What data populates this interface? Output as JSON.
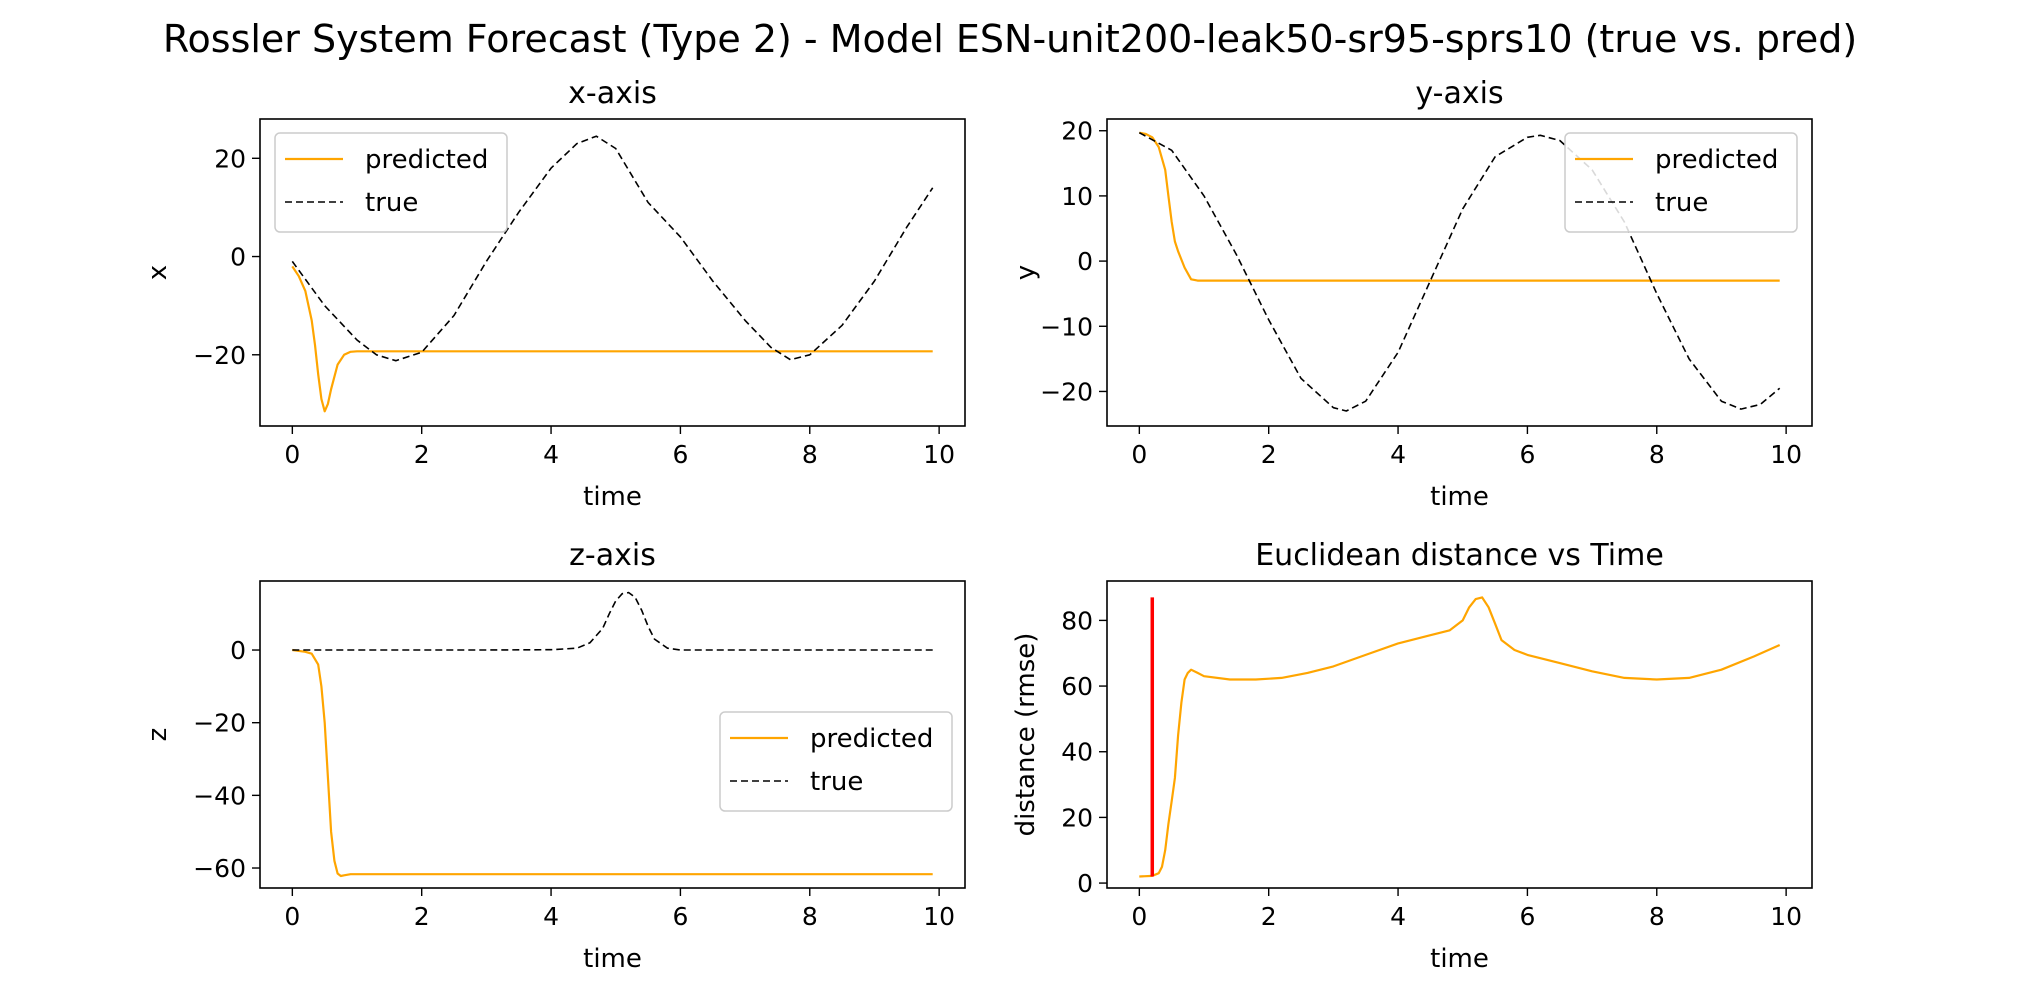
{
  "figure": {
    "title": "Rossler System Forecast (Type 2) - Model ESN-unit200-leak50-sr95-sprs10 (true vs. pred)"
  },
  "colors": {
    "predicted": "#ffa500",
    "true": "#000000",
    "threshold": "#ff0000"
  },
  "chart_data": [
    {
      "type": "line",
      "title": "x-axis",
      "xlabel": "time",
      "ylabel": "x",
      "xlim": [
        -0.5,
        10.4
      ],
      "ylim": [
        -34.5,
        28
      ],
      "xticks": [
        0,
        2,
        4,
        6,
        8,
        10
      ],
      "yticks": [
        -20,
        0,
        20
      ],
      "legend": "upper-left",
      "series": [
        {
          "name": "predicted",
          "style": "solid",
          "x": [
            0,
            0.1,
            0.2,
            0.3,
            0.35,
            0.4,
            0.45,
            0.5,
            0.55,
            0.6,
            0.7,
            0.8,
            0.9,
            1.0,
            2.0,
            4.0,
            6.0,
            8.0,
            9.9
          ],
          "y": [
            -2,
            -4,
            -7,
            -13,
            -18,
            -24,
            -29,
            -31.5,
            -30,
            -27,
            -22,
            -20,
            -19.4,
            -19.3,
            -19.3,
            -19.3,
            -19.3,
            -19.3,
            -19.3
          ]
        },
        {
          "name": "true",
          "style": "dashed",
          "x": [
            0,
            0.5,
            1.0,
            1.3,
            1.6,
            2.0,
            2.5,
            3.0,
            3.5,
            4.0,
            4.4,
            4.7,
            5.0,
            5.5,
            6.0,
            6.5,
            7.0,
            7.4,
            7.7,
            8.0,
            8.5,
            9.0,
            9.5,
            9.9
          ],
          "y": [
            -1,
            -10,
            -17,
            -20,
            -21.2,
            -19.5,
            -12,
            -1,
            9,
            18,
            23,
            24.5,
            22,
            11,
            4,
            -5,
            -13,
            -18.5,
            -21,
            -20,
            -14,
            -5,
            6,
            14
          ]
        }
      ]
    },
    {
      "type": "line",
      "title": "y-axis",
      "xlabel": "time",
      "ylabel": "y",
      "xlim": [
        -0.5,
        10.4
      ],
      "ylim": [
        -25.3,
        21.8
      ],
      "xticks": [
        0,
        2,
        4,
        6,
        8,
        10
      ],
      "yticks": [
        -20,
        -10,
        0,
        10,
        20
      ],
      "legend": "upper-right",
      "series": [
        {
          "name": "predicted",
          "style": "solid",
          "x": [
            0,
            0.1,
            0.2,
            0.3,
            0.4,
            0.45,
            0.5,
            0.55,
            0.6,
            0.7,
            0.8,
            0.9,
            1.0,
            2.0,
            4.0,
            6.0,
            8.0,
            9.9
          ],
          "y": [
            19.7,
            19.5,
            19,
            17.5,
            14,
            10,
            6,
            3,
            1.5,
            -1,
            -2.8,
            -3,
            -3,
            -3,
            -3,
            -3,
            -3,
            -3
          ]
        },
        {
          "name": "true",
          "style": "dashed",
          "x": [
            0,
            0.5,
            1.0,
            1.5,
            2.0,
            2.5,
            3.0,
            3.2,
            3.5,
            4.0,
            4.5,
            5.0,
            5.5,
            6.0,
            6.2,
            6.5,
            7.0,
            7.5,
            8.0,
            8.5,
            9.0,
            9.3,
            9.6,
            9.9
          ],
          "y": [
            19.7,
            17,
            10,
            1,
            -9,
            -18,
            -22.5,
            -23,
            -21.5,
            -14,
            -3,
            8,
            16,
            19,
            19.3,
            18.5,
            14,
            6,
            -5,
            -15,
            -21.5,
            -22.7,
            -22,
            -19.5
          ]
        }
      ]
    },
    {
      "type": "line",
      "title": "z-axis",
      "xlabel": "time",
      "ylabel": "z",
      "xlim": [
        -0.5,
        10.4
      ],
      "ylim": [
        -65.5,
        19
      ],
      "xticks": [
        0,
        2,
        4,
        6,
        8,
        10
      ],
      "yticks": [
        -60,
        -40,
        -20,
        0
      ],
      "legend": "center-right",
      "series": [
        {
          "name": "predicted",
          "style": "solid",
          "x": [
            0,
            0.2,
            0.3,
            0.4,
            0.45,
            0.5,
            0.55,
            0.6,
            0.65,
            0.7,
            0.75,
            0.8,
            0.9,
            1.0,
            2.0,
            4.0,
            6.0,
            8.0,
            9.9
          ],
          "y": [
            0,
            -0.5,
            -1,
            -4,
            -10,
            -20,
            -35,
            -50,
            -58,
            -61.5,
            -62.2,
            -62,
            -61.7,
            -61.7,
            -61.7,
            -61.7,
            -61.7,
            -61.7,
            -61.7
          ]
        },
        {
          "name": "true",
          "style": "dashed",
          "x": [
            0,
            1,
            2,
            3,
            4.0,
            4.4,
            4.6,
            4.8,
            4.9,
            5.0,
            5.1,
            5.2,
            5.3,
            5.4,
            5.5,
            5.6,
            5.8,
            6.0,
            7,
            8,
            9,
            9.9
          ],
          "y": [
            0,
            0,
            0,
            0,
            0.1,
            0.5,
            2,
            6,
            10,
            13.5,
            15.5,
            15.8,
            14.5,
            11,
            6.5,
            3,
            0.5,
            0,
            0,
            0,
            0,
            0
          ]
        }
      ]
    },
    {
      "type": "line",
      "title": "Euclidean distance vs Time",
      "xlabel": "time",
      "ylabel": "distance (rmse)",
      "xlim": [
        -0.5,
        10.4
      ],
      "ylim": [
        -1.5,
        92
      ],
      "xticks": [
        0,
        2,
        4,
        6,
        8,
        10
      ],
      "yticks": [
        0,
        20,
        40,
        60,
        80
      ],
      "series": [
        {
          "name": "distance",
          "style": "solid",
          "x": [
            0,
            0.2,
            0.3,
            0.35,
            0.4,
            0.45,
            0.5,
            0.55,
            0.6,
            0.65,
            0.7,
            0.75,
            0.8,
            0.9,
            1.0,
            1.4,
            1.8,
            2.2,
            2.6,
            3.0,
            3.5,
            4.0,
            4.5,
            4.8,
            5.0,
            5.1,
            5.2,
            5.3,
            5.4,
            5.5,
            5.6,
            5.8,
            6.0,
            6.5,
            7.0,
            7.5,
            8.0,
            8.5,
            9.0,
            9.5,
            9.9
          ],
          "y": [
            2,
            2.2,
            3,
            5,
            10,
            18,
            25,
            32,
            45,
            55,
            62,
            64,
            65,
            64,
            63,
            62,
            62,
            62.5,
            64,
            66,
            69.5,
            73,
            75.5,
            77,
            80,
            84,
            86.5,
            87,
            84,
            79,
            74,
            71,
            69.5,
            67,
            64.5,
            62.5,
            62,
            62.5,
            65,
            69,
            72.5
          ]
        },
        {
          "name": "threshold",
          "style": "vline",
          "x": [
            0.2,
            0.2
          ],
          "y": [
            2,
            87
          ]
        }
      ]
    }
  ]
}
